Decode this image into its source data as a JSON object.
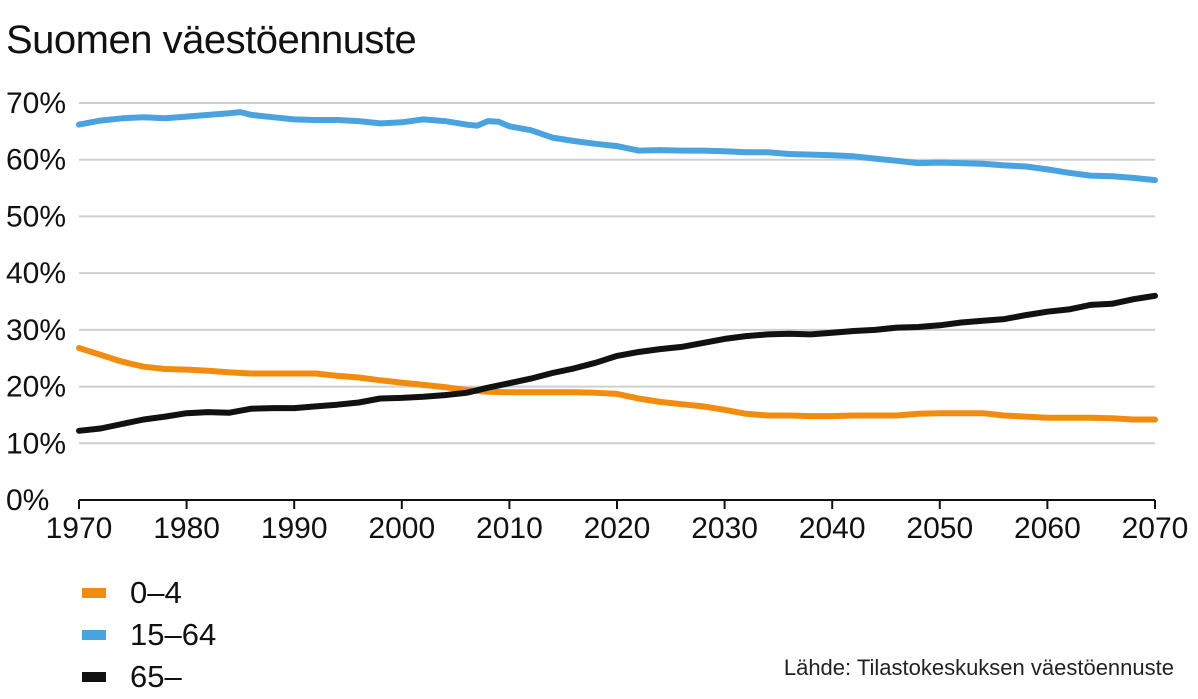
{
  "title": "Suomen väestöennuste",
  "source": "Lähde: Tilastokeskuksen väestöennuste",
  "chart_data": {
    "type": "line",
    "ylim": [
      0,
      70
    ],
    "xlim": [
      1970,
      2070
    ],
    "y_ticks": [
      0,
      10,
      20,
      30,
      40,
      50,
      60,
      70
    ],
    "y_tick_labels": [
      "0%",
      "10%",
      "20%",
      "30%",
      "40%",
      "50%",
      "60%",
      "70%"
    ],
    "x_ticks": [
      1970,
      1980,
      1990,
      2000,
      2010,
      2020,
      2030,
      2040,
      2050,
      2060,
      2070
    ],
    "x_tick_labels": [
      "1970",
      "1980",
      "1990",
      "2000",
      "2010",
      "2020",
      "2030",
      "2040",
      "2050",
      "2060",
      "2070"
    ],
    "grid": true,
    "legend_position": "bottom-left",
    "series": [
      {
        "name": "0–4",
        "color": "#f28c0f",
        "x": [
          1970,
          1972,
          1974,
          1976,
          1978,
          1980,
          1982,
          1984,
          1986,
          1988,
          1990,
          1992,
          1994,
          1996,
          1998,
          2000,
          2002,
          2004,
          2006,
          2008,
          2010,
          2012,
          2014,
          2016,
          2018,
          2020,
          2022,
          2024,
          2026,
          2028,
          2030,
          2032,
          2034,
          2036,
          2038,
          2040,
          2042,
          2044,
          2046,
          2048,
          2050,
          2052,
          2054,
          2056,
          2058,
          2060,
          2062,
          2064,
          2066,
          2068,
          2070
        ],
        "y": [
          26.8,
          25.6,
          24.4,
          23.5,
          23.1,
          23.0,
          22.8,
          22.5,
          22.3,
          22.3,
          22.3,
          22.3,
          21.9,
          21.6,
          21.1,
          20.7,
          20.3,
          19.9,
          19.4,
          19.1,
          19.0,
          19.0,
          19.0,
          19.0,
          18.9,
          18.7,
          17.9,
          17.3,
          16.9,
          16.5,
          15.9,
          15.2,
          14.9,
          14.9,
          14.8,
          14.8,
          14.9,
          14.9,
          14.9,
          15.2,
          15.3,
          15.3,
          15.3,
          14.9,
          14.7,
          14.5,
          14.5,
          14.5,
          14.4,
          14.2,
          14.2
        ]
      },
      {
        "name": "15–64",
        "color": "#4aa3df",
        "x": [
          1970,
          1972,
          1974,
          1976,
          1978,
          1980,
          1982,
          1984,
          1985,
          1986,
          1988,
          1990,
          1992,
          1994,
          1996,
          1998,
          2000,
          2002,
          2004,
          2006,
          2007,
          2008,
          2009,
          2010,
          2012,
          2014,
          2016,
          2018,
          2020,
          2022,
          2024,
          2026,
          2028,
          2030,
          2032,
          2034,
          2036,
          2038,
          2040,
          2042,
          2044,
          2046,
          2048,
          2050,
          2052,
          2054,
          2056,
          2058,
          2060,
          2062,
          2064,
          2066,
          2068,
          2070
        ],
        "y": [
          66.2,
          66.9,
          67.3,
          67.5,
          67.3,
          67.6,
          67.9,
          68.2,
          68.4,
          67.9,
          67.5,
          67.1,
          67.0,
          67.0,
          66.8,
          66.4,
          66.6,
          67.1,
          66.8,
          66.2,
          66.0,
          66.8,
          66.7,
          65.9,
          65.2,
          63.9,
          63.3,
          62.8,
          62.4,
          61.6,
          61.7,
          61.6,
          61.6,
          61.5,
          61.3,
          61.3,
          61.0,
          60.9,
          60.8,
          60.6,
          60.2,
          59.8,
          59.4,
          59.5,
          59.4,
          59.3,
          59.0,
          58.8,
          58.3,
          57.7,
          57.2,
          57.1,
          56.8,
          56.4
        ]
      },
      {
        "name": "65–",
        "color": "#111111",
        "x": [
          1970,
          1972,
          1974,
          1976,
          1978,
          1980,
          1982,
          1984,
          1986,
          1988,
          1990,
          1992,
          1994,
          1996,
          1998,
          2000,
          2002,
          2004,
          2006,
          2008,
          2010,
          2012,
          2014,
          2016,
          2018,
          2020,
          2022,
          2024,
          2026,
          2028,
          2030,
          2032,
          2034,
          2036,
          2038,
          2040,
          2042,
          2044,
          2046,
          2048,
          2050,
          2052,
          2054,
          2056,
          2058,
          2060,
          2062,
          2064,
          2066,
          2068,
          2070
        ],
        "y": [
          12.2,
          12.6,
          13.4,
          14.2,
          14.7,
          15.3,
          15.5,
          15.4,
          16.1,
          16.2,
          16.2,
          16.5,
          16.8,
          17.2,
          17.9,
          18.0,
          18.2,
          18.5,
          18.9,
          19.8,
          20.6,
          21.4,
          22.4,
          23.2,
          24.2,
          25.4,
          26.1,
          26.6,
          27.0,
          27.7,
          28.4,
          28.9,
          29.2,
          29.3,
          29.2,
          29.5,
          29.8,
          30.0,
          30.4,
          30.5,
          30.8,
          31.3,
          31.6,
          31.9,
          32.6,
          33.2,
          33.6,
          34.4,
          34.6,
          35.4,
          36.0
        ]
      }
    ]
  }
}
